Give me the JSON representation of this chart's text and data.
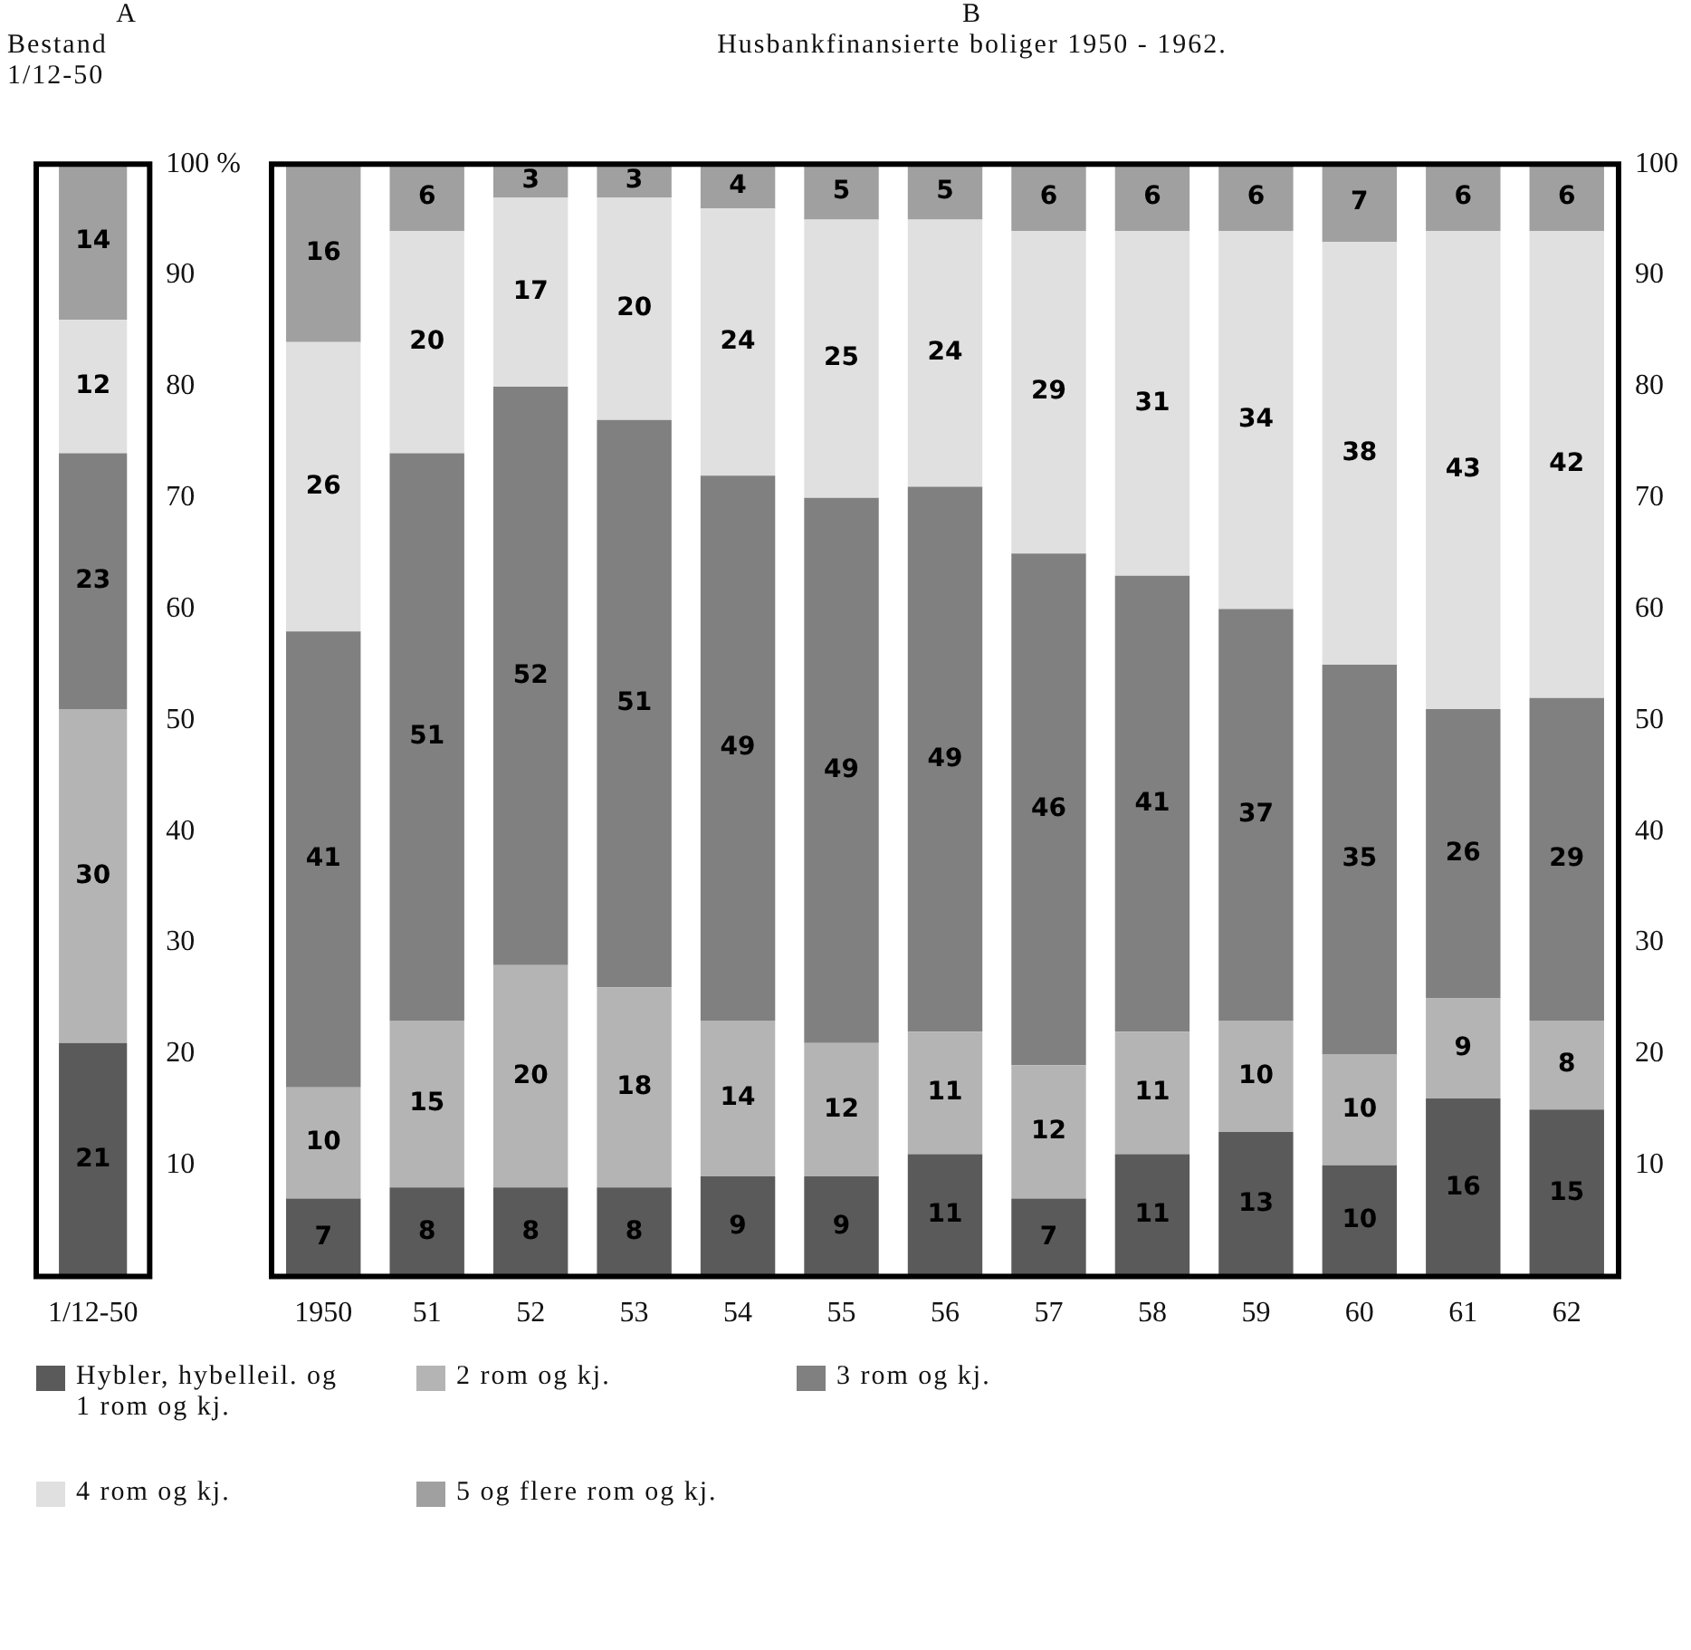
{
  "chart_data": [
    {
      "type": "bar",
      "title": "A",
      "subtitle": "Bestand\n1/12-50",
      "categories": [
        "1/12-50"
      ],
      "stacked": true,
      "data_labels": true,
      "grid": false,
      "legend": false,
      "ylim": [
        0,
        100
      ],
      "yticks": [
        10,
        20,
        30,
        40,
        50,
        60,
        70,
        80,
        90,
        {
          "value": 100,
          "label": "100 %"
        }
      ],
      "series": [
        {
          "color": "#5a5a5a",
          "values": [
            21
          ]
        },
        {
          "color": "#b4b4b4",
          "values": [
            30
          ]
        },
        {
          "color": "#808080",
          "values": [
            23
          ]
        },
        {
          "color": "#e0e0e0",
          "values": [
            12
          ]
        },
        {
          "color": "#a0a0a0",
          "values": [
            14
          ]
        }
      ]
    },
    {
      "type": "bar",
      "title": "B",
      "subtitle": "Husbankfinansierte boliger 1950 - 1962.",
      "categories": [
        "1950",
        "51",
        "52",
        "53",
        "54",
        "55",
        "56",
        "57",
        "58",
        "59",
        "60",
        "61",
        "62"
      ],
      "stacked": true,
      "data_labels": true,
      "grid": false,
      "legend": "bottom",
      "ylim": [
        0,
        100
      ],
      "yticks": [
        10,
        20,
        30,
        40,
        50,
        60,
        70,
        80,
        90,
        100
      ],
      "series": [
        {
          "name": "Hybler, hybelleil. og 1 rom og kj.",
          "color": "#5a5a5a",
          "values": [
            7,
            8,
            8,
            8,
            9,
            9,
            11,
            7,
            11,
            13,
            10,
            16,
            15
          ]
        },
        {
          "name": "2 rom og kj.",
          "color": "#b4b4b4",
          "values": [
            10,
            15,
            20,
            18,
            14,
            12,
            11,
            12,
            11,
            10,
            10,
            9,
            8
          ]
        },
        {
          "name": "3 rom og kj.",
          "color": "#808080",
          "values": [
            41,
            51,
            52,
            51,
            49,
            49,
            49,
            46,
            41,
            37,
            35,
            26,
            29
          ]
        },
        {
          "name": "4 rom og kj.",
          "color": "#e0e0e0",
          "values": [
            26,
            20,
            17,
            20,
            24,
            25,
            24,
            29,
            31,
            34,
            38,
            43,
            42
          ]
        },
        {
          "name": "5 og flere rom og kj.",
          "color": "#a0a0a0",
          "values": [
            16,
            6,
            3,
            3,
            4,
            5,
            5,
            6,
            6,
            6,
            7,
            6,
            6
          ]
        }
      ]
    }
  ]
}
